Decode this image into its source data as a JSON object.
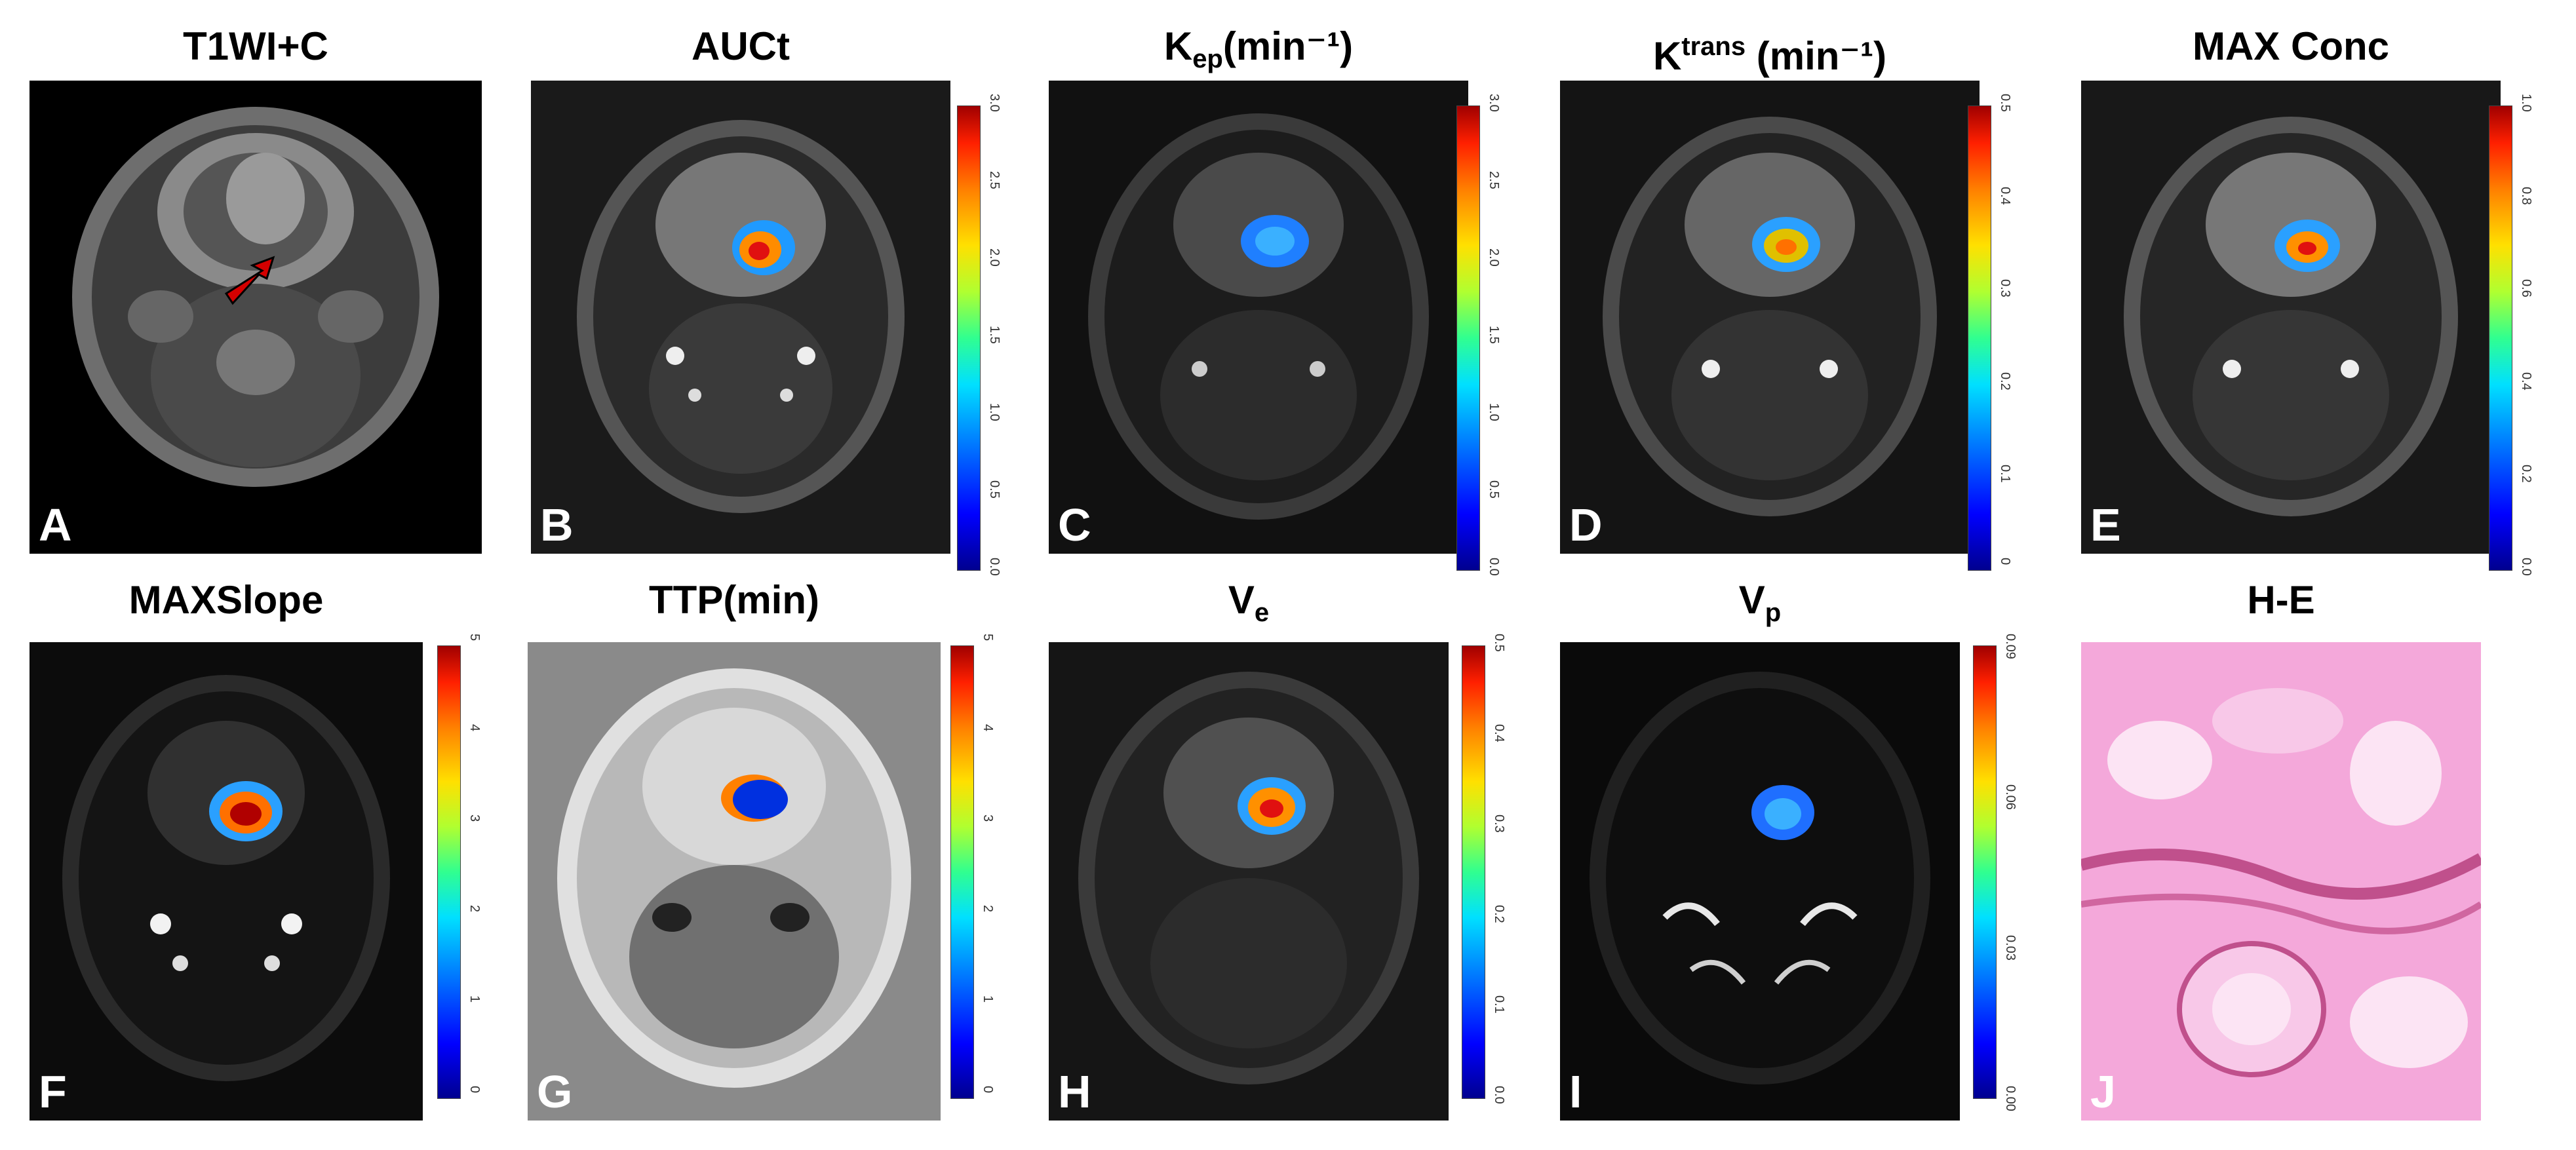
{
  "panels": [
    {
      "id": "A",
      "title": "T1WI+C",
      "letter": "A",
      "ticks": []
    },
    {
      "id": "B",
      "title": "AUCt",
      "letter": "B",
      "ticks": [
        "0.0",
        "0.5",
        "1.0",
        "1.5",
        "2.0",
        "2.5",
        "3.0"
      ]
    },
    {
      "id": "C",
      "title_main": "K",
      "title_sub": "ep",
      "title_rest": "(min⁻¹)",
      "letter": "C",
      "ticks": [
        "0.0",
        "0.5",
        "1.0",
        "1.5",
        "2.0",
        "2.5",
        "3.0"
      ]
    },
    {
      "id": "D",
      "title_main": "K",
      "title_sup": "trans",
      "title_rest": " (min⁻¹)",
      "letter": "D",
      "ticks": [
        "0",
        "0.1",
        "0.2",
        "0.3",
        "0.4",
        "0.5"
      ]
    },
    {
      "id": "E",
      "title": "MAX Conc",
      "letter": "E",
      "ticks": [
        "0.0",
        "0.2",
        "0.4",
        "0.6",
        "0.8",
        "1.0"
      ]
    },
    {
      "id": "F",
      "title": "MAXSlope",
      "letter": "F",
      "ticks": [
        "0",
        "1",
        "2",
        "3",
        "4",
        "5"
      ]
    },
    {
      "id": "G",
      "title": "TTP(min)",
      "letter": "G",
      "ticks": [
        "0",
        "1",
        "2",
        "3",
        "4",
        "5"
      ]
    },
    {
      "id": "H",
      "title_main": "V",
      "title_sub": "e",
      "title_rest": "",
      "letter": "H",
      "ticks": [
        "0.0",
        "0.1",
        "0.2",
        "0.3",
        "0.4",
        "0.5"
      ]
    },
    {
      "id": "I",
      "title_main": "V",
      "title_sub": "p",
      "title_rest": "",
      "letter": "I",
      "ticks": [
        "0.00",
        "0.03",
        "0.06",
        "0.09"
      ]
    },
    {
      "id": "J",
      "title": "H-E",
      "letter": "J",
      "ticks": []
    }
  ],
  "colors": {
    "arrow": "#d40000",
    "he_pink": "#f09ad2"
  }
}
